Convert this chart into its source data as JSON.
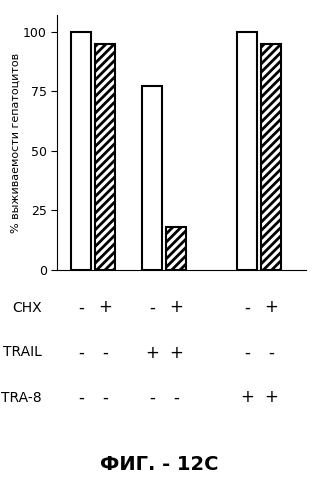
{
  "bar_values": [
    100,
    95,
    77,
    18,
    100,
    95
  ],
  "bar_positions": [
    1,
    2,
    4,
    5,
    8,
    9
  ],
  "bar_width": 0.85,
  "bar_colors": [
    "white",
    "white",
    "white",
    "white",
    "white",
    "white"
  ],
  "bar_hatches": [
    "",
    "////",
    "",
    "////",
    "",
    "////"
  ],
  "bar_edgecolors": [
    "black",
    "black",
    "black",
    "black",
    "black",
    "black"
  ],
  "ylabel": "% выживаемости гепатоцитов",
  "ylim": [
    0,
    107
  ],
  "yticks": [
    0,
    25,
    50,
    75,
    100
  ],
  "xlabel": "",
  "title": "",
  "condition_rows": [
    "CHX",
    "TRAIL",
    "TRA-8"
  ],
  "condition_signs": [
    [
      "-",
      "+",
      "-",
      "+",
      "-",
      "+"
    ],
    [
      "-",
      "-",
      "+",
      "+",
      "-",
      "-"
    ],
    [
      "-",
      "-",
      "-",
      "-",
      "+",
      "+"
    ]
  ],
  "figure_label": "ФИГ. - 12C",
  "background_color": "white",
  "linewidth": 1.5,
  "hatch_linewidth": 2.0
}
